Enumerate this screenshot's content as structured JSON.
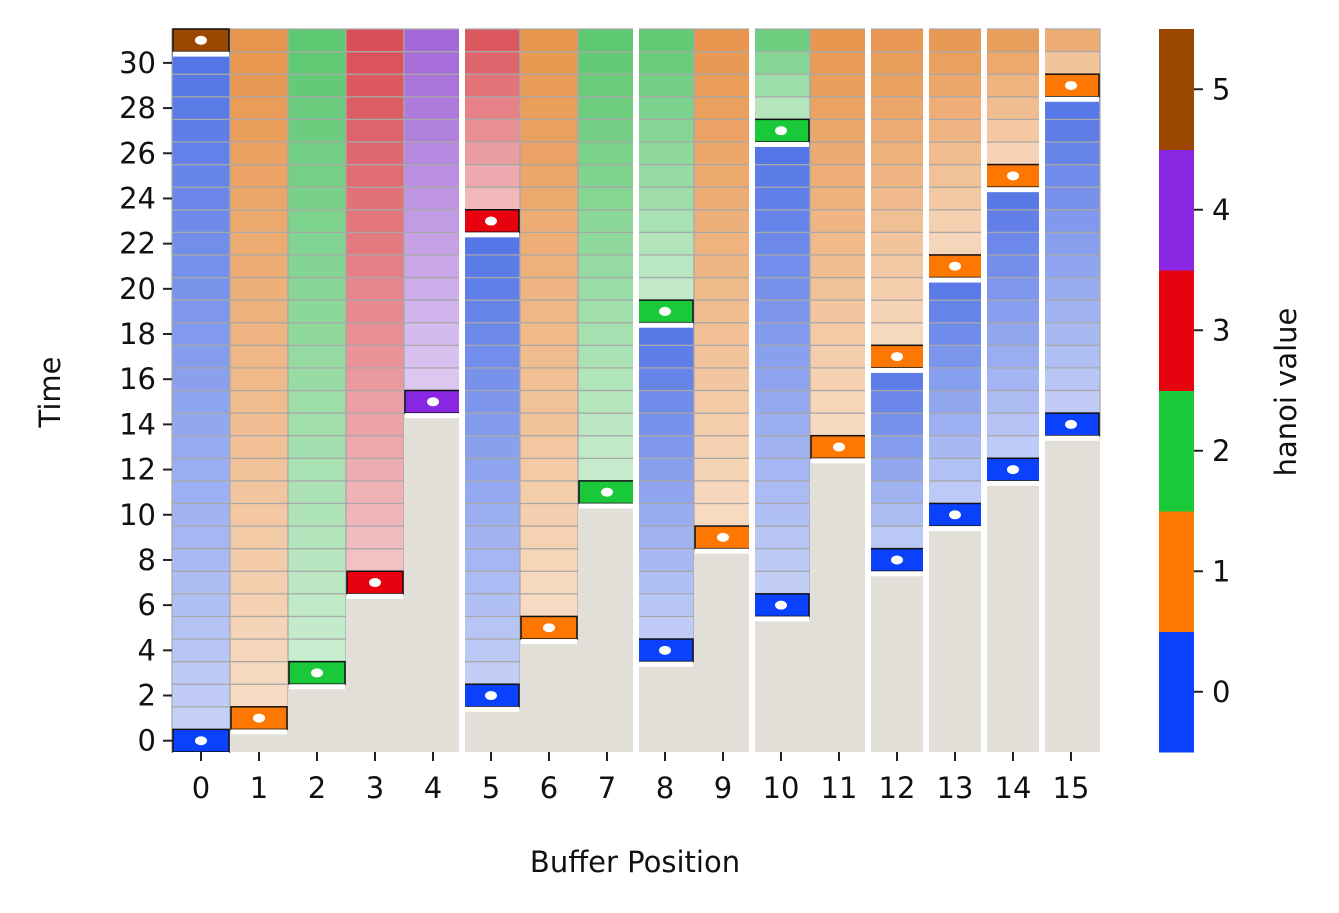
{
  "chart_data": {
    "type": "heatmap",
    "xlabel": "Buffer Position",
    "ylabel": "Time",
    "x_categories": [
      "0",
      "1",
      "2",
      "3",
      "4",
      "5",
      "6",
      "7",
      "8",
      "9",
      "10",
      "11",
      "12",
      "13",
      "14",
      "15"
    ],
    "y_ticks": [
      "0",
      "2",
      "4",
      "6",
      "8",
      "10",
      "12",
      "14",
      "16",
      "18",
      "20",
      "22",
      "24",
      "26",
      "28",
      "30"
    ],
    "ylim": [
      0,
      31
    ],
    "writes": [
      {
        "position": 0,
        "time": 0,
        "value": 0
      },
      {
        "position": 1,
        "time": 1,
        "value": 1
      },
      {
        "position": 2,
        "time": 3,
        "value": 2
      },
      {
        "position": 3,
        "time": 7,
        "value": 3
      },
      {
        "position": 4,
        "time": 15,
        "value": 4
      },
      {
        "position": 5,
        "time": 2,
        "value": 0
      },
      {
        "position": 5,
        "time": 23,
        "value": 3
      },
      {
        "position": 6,
        "time": 5,
        "value": 1
      },
      {
        "position": 7,
        "time": 11,
        "value": 2
      },
      {
        "position": 8,
        "time": 4,
        "value": 0
      },
      {
        "position": 8,
        "time": 19,
        "value": 2
      },
      {
        "position": 9,
        "time": 9,
        "value": 1
      },
      {
        "position": 10,
        "time": 6,
        "value": 0
      },
      {
        "position": 10,
        "time": 27,
        "value": 2
      },
      {
        "position": 11,
        "time": 13,
        "value": 1
      },
      {
        "position": 12,
        "time": 8,
        "value": 0
      },
      {
        "position": 12,
        "time": 17,
        "value": 1
      },
      {
        "position": 13,
        "time": 10,
        "value": 0
      },
      {
        "position": 13,
        "time": 21,
        "value": 1
      },
      {
        "position": 14,
        "time": 12,
        "value": 0
      },
      {
        "position": 14,
        "time": 25,
        "value": 1
      },
      {
        "position": 15,
        "time": 14,
        "value": 0
      },
      {
        "position": 15,
        "time": 29,
        "value": 1
      },
      {
        "position": 0,
        "time": 31,
        "value": 5
      }
    ],
    "group_breaks_after": [
      4,
      7,
      9,
      11,
      12,
      13,
      14
    ],
    "colorbar": {
      "label": "hanoi value",
      "ticks": [
        "0",
        "1",
        "2",
        "3",
        "4",
        "5"
      ],
      "colors": [
        "#0a41fc",
        "#fe7700",
        "#1ac93a",
        "#e8010e",
        "#8a27e2",
        "#9c4700"
      ]
    },
    "empty_color": "#e2dfd8"
  }
}
